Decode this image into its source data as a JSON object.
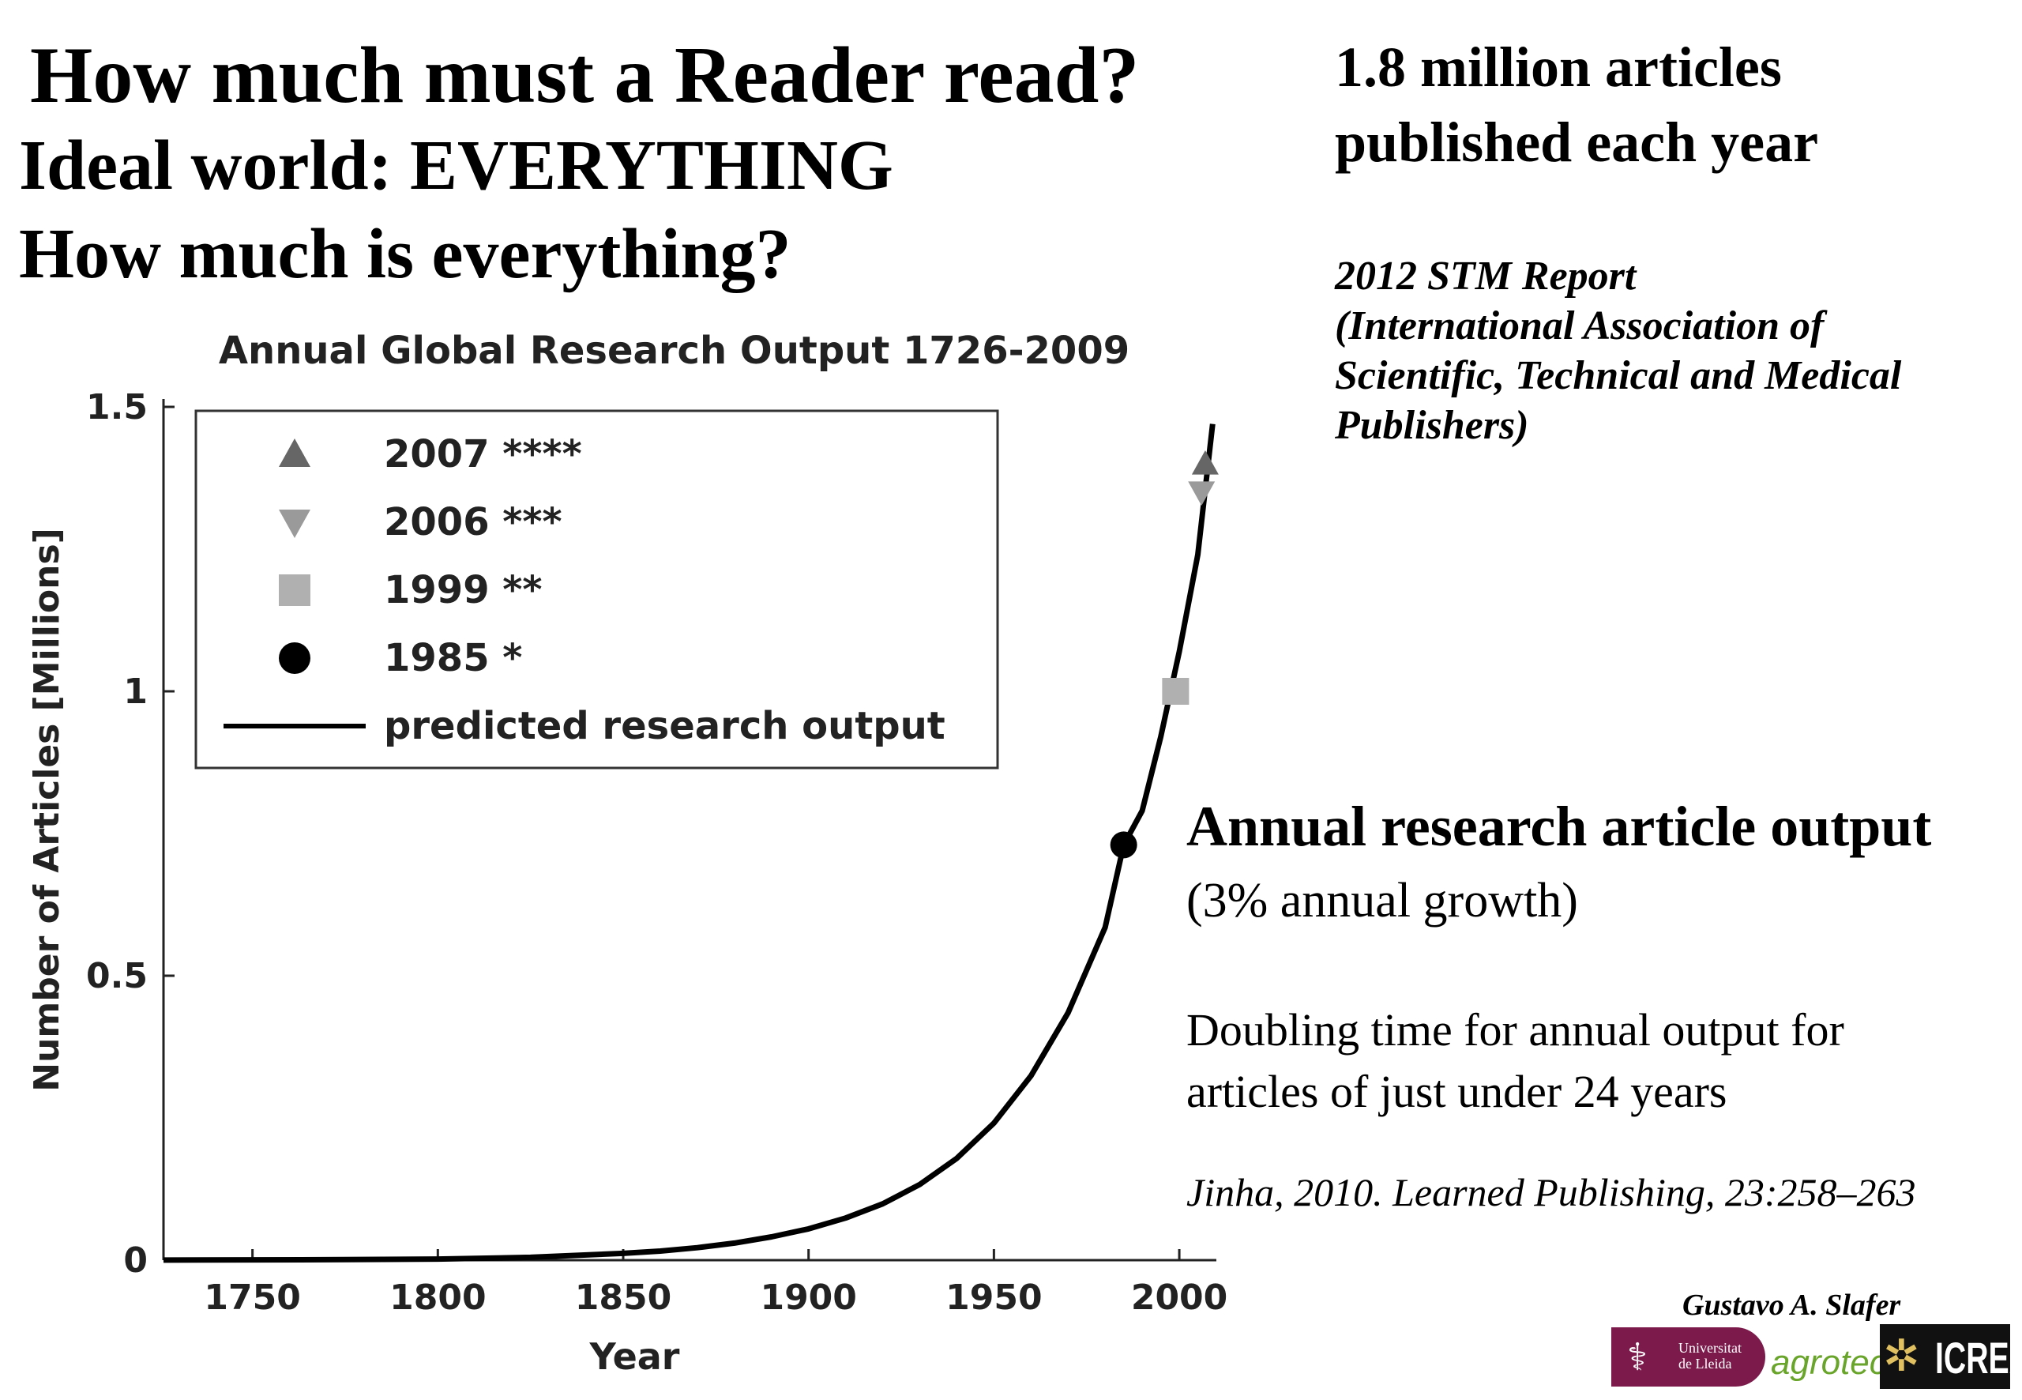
{
  "slide": {
    "title": "How much must a Reader read?",
    "subtitle1": "Ideal world: EVERYTHING",
    "subtitle2": "How much is everything?",
    "stat_line1": "1.8 million articles",
    "stat_line2": "published each year",
    "source_lines": [
      "2012 STM Report",
      "(International Association of",
      "Scientific, Technical and Medical",
      "Publishers)"
    ],
    "output_title": "Annual research article output",
    "output_subtitle": "(3% annual growth)",
    "doubling_line1": "Doubling time for annual output for",
    "doubling_line2": "articles of just under 24 years",
    "citation": "Jinha, 2010. Learned Publishing, 23:258–263",
    "author": "Gustavo A. Slafer",
    "logos": {
      "university_line1": "Universitat",
      "university_line2": "de Lleida",
      "agro": "agrotecnio",
      "icrea": "ICREA"
    }
  },
  "chart_data": {
    "type": "line",
    "title": "Annual Global Research Output 1726-2009",
    "xlabel": "Year",
    "ylabel": "Number of Articles [Millions]",
    "xlim": [
      1726,
      2010
    ],
    "ylim": [
      0,
      1.5
    ],
    "xticks": [
      1750,
      1800,
      1850,
      1900,
      1950,
      2000
    ],
    "yticks": [
      0,
      0.5,
      1,
      1.5
    ],
    "ytick_labels": [
      "0",
      "0.5",
      "1",
      "1.5"
    ],
    "legend_position": "top-left",
    "grid": false,
    "series": [
      {
        "name": "predicted research output",
        "kind": "line",
        "color": "#000000",
        "x": [
          1726,
          1750,
          1775,
          1800,
          1825,
          1850,
          1860,
          1870,
          1880,
          1890,
          1900,
          1910,
          1920,
          1930,
          1940,
          1950,
          1960,
          1970,
          1980,
          1985,
          1990,
          1995,
          2000,
          2005,
          2009
        ],
        "y": [
          0.0001,
          0.0005,
          0.001,
          0.002,
          0.005,
          0.012,
          0.016,
          0.022,
          0.03,
          0.041,
          0.055,
          0.074,
          0.099,
          0.133,
          0.179,
          0.241,
          0.324,
          0.435,
          0.585,
          0.73,
          0.79,
          0.92,
          1.07,
          1.24,
          1.47
        ]
      },
      {
        "name": "2007 ****",
        "kind": "marker",
        "marker": "triangle-up",
        "color": "#666666",
        "x": [
          2007
        ],
        "y": [
          1.4
        ]
      },
      {
        "name": "2006 ***",
        "kind": "marker",
        "marker": "triangle-down",
        "color": "#9a9a9a",
        "x": [
          2006
        ],
        "y": [
          1.35
        ]
      },
      {
        "name": "1999 **",
        "kind": "marker",
        "marker": "square",
        "color": "#b0b0b0",
        "x": [
          1999
        ],
        "y": [
          1.0
        ]
      },
      {
        "name": "1985 *",
        "kind": "marker",
        "marker": "circle",
        "color": "#000000",
        "x": [
          1985
        ],
        "y": [
          0.73
        ]
      }
    ],
    "legend": [
      "2007 ****",
      "2006 ***",
      "1999 **",
      "1985 *",
      "predicted research output"
    ]
  }
}
